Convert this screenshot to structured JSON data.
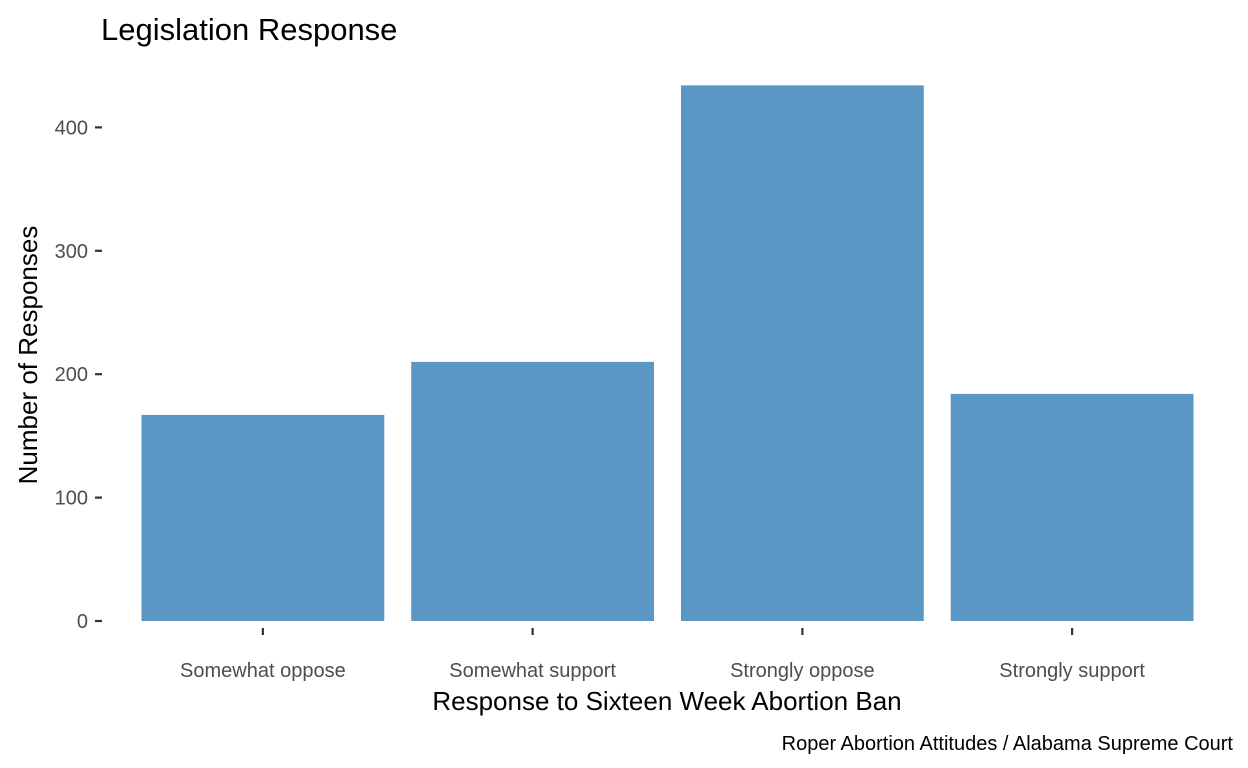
{
  "chart_data": {
    "type": "bar",
    "title": "Legislation Response",
    "xlabel": "Response to Sixteen Week Abortion Ban",
    "ylabel": "Number of Responses",
    "caption": "Roper Abortion Attitudes / Alabama Supreme Court",
    "categories": [
      "Somewhat oppose",
      "Somewhat support",
      "Strongly oppose",
      "Strongly support"
    ],
    "values": [
      167,
      210,
      434,
      184
    ],
    "ylim": [
      0,
      434
    ],
    "yticks": [
      0,
      100,
      200,
      300,
      400
    ],
    "grid": false,
    "bar_color": "#5b97c4"
  }
}
